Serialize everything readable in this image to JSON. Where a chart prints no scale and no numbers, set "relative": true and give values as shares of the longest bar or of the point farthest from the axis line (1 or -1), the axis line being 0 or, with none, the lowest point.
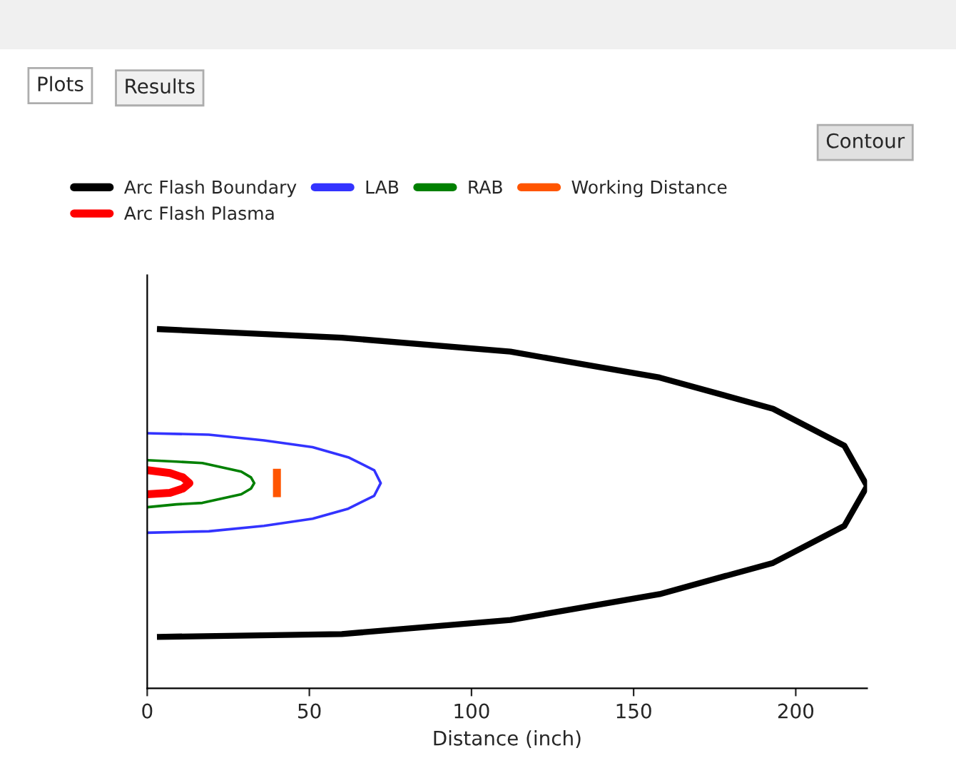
{
  "chart_data": {
    "type": "line",
    "relative": true,
    "xlabel": "Distance (inch)",
    "xlim": [
      0,
      222
    ],
    "xticks": [
      0,
      50,
      100,
      150,
      200
    ],
    "tick_labels": "x",
    "grid": false,
    "legend": "top",
    "marker": "none",
    "line_style": "solid",
    "annotations": [
      "Plots",
      "Results",
      "Contour"
    ],
    "series": [
      {
        "name": "Arc Flash Boundary",
        "color": "#000000",
        "x": [
          3,
          60,
          112,
          158,
          193,
          215,
          222,
          215,
          193,
          158,
          112,
          60,
          3
        ],
        "values": [
          1.0,
          0.976,
          0.937,
          0.865,
          0.778,
          0.675,
          0.563,
          0.452,
          0.349,
          0.262,
          0.19,
          0.151,
          0.143
        ]
      },
      {
        "name": "LAB",
        "color": "#3333ff",
        "x": [
          0,
          19,
          36,
          51,
          62,
          70,
          72,
          70,
          62,
          51,
          36,
          19,
          0
        ],
        "values": [
          0.71,
          0.706,
          0.69,
          0.671,
          0.643,
          0.607,
          0.571,
          0.536,
          0.5,
          0.472,
          0.452,
          0.437,
          0.433
        ]
      },
      {
        "name": "RAB",
        "color": "#008000",
        "x": [
          0,
          9,
          17,
          23,
          29,
          32,
          33,
          32,
          29,
          23,
          17,
          9,
          0
        ],
        "values": [
          0.635,
          0.631,
          0.627,
          0.615,
          0.603,
          0.587,
          0.571,
          0.556,
          0.54,
          0.528,
          0.516,
          0.512,
          0.504
        ]
      },
      {
        "name": "Working Distance",
        "color": "#ff5500",
        "x": [
          40,
          40
        ],
        "values": [
          0.611,
          0.532
        ]
      },
      {
        "name": "Arc Flash Plasma",
        "color": "#ff0000",
        "x": [
          0,
          7,
          11,
          13,
          11,
          7,
          0
        ],
        "values": [
          0.607,
          0.599,
          0.587,
          0.571,
          0.556,
          0.544,
          0.54
        ]
      }
    ]
  }
}
